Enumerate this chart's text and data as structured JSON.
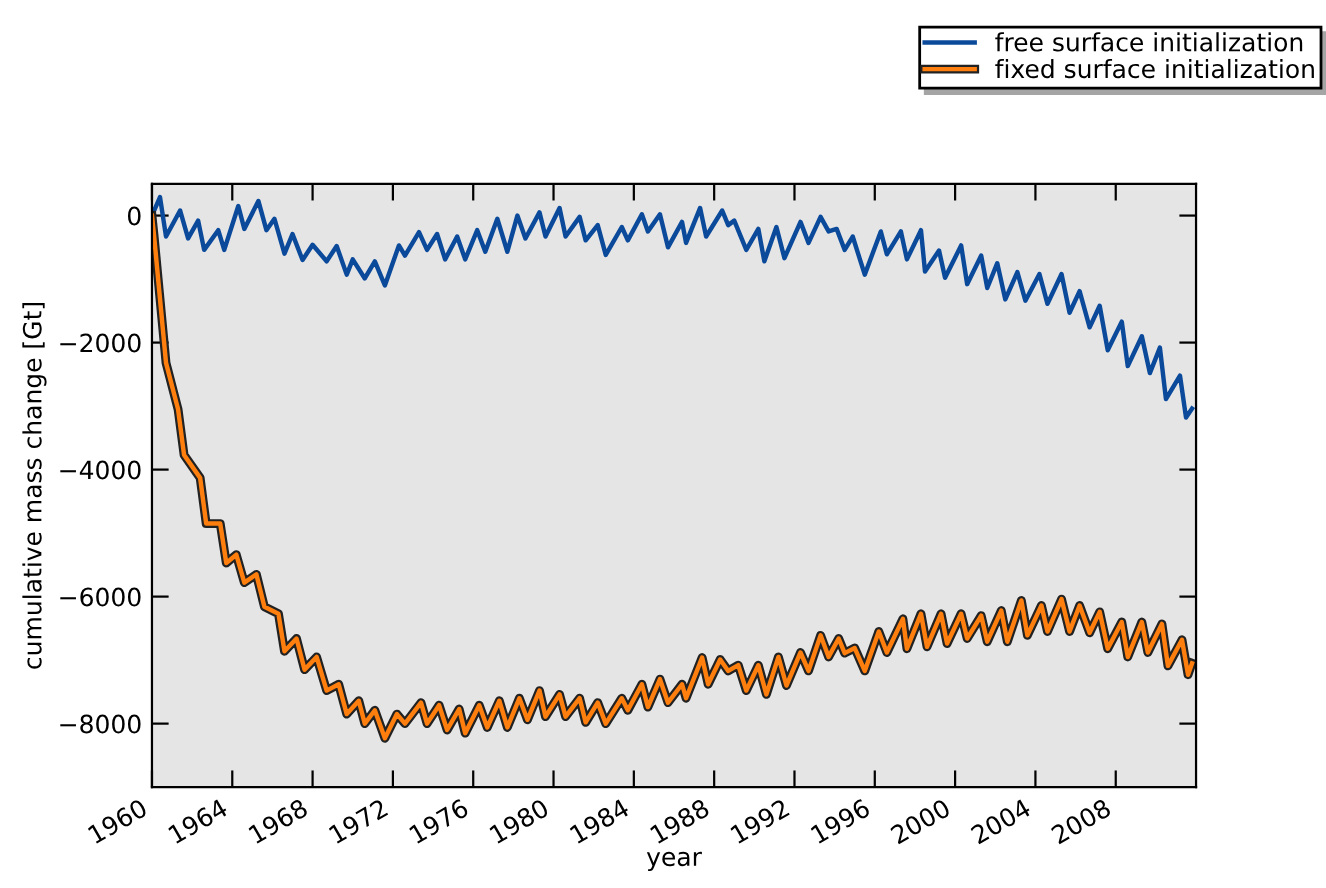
{
  "chart_data": {
    "type": "line",
    "xlabel": "year",
    "ylabel": "cumulative mass change [Gt]",
    "xlim": [
      1960,
      2012
    ],
    "ylim": [
      -9000,
      500
    ],
    "xticks": [
      1960,
      1964,
      1968,
      1972,
      1976,
      1980,
      1984,
      1988,
      1992,
      1996,
      2000,
      2004,
      2008
    ],
    "yticks": [
      -8000,
      -6000,
      -4000,
      -2000,
      0
    ],
    "grid": false,
    "legend": "top right",
    "line_style": "solid",
    "marker": "none",
    "series": [
      {
        "name": "free surface initialization",
        "color": "#0b4a9b",
        "x": [
          1960.0,
          1960.4,
          1960.7,
          1961.4,
          1961.8,
          1962.3,
          1962.6,
          1963.3,
          1963.6,
          1964.3,
          1964.6,
          1965.3,
          1965.7,
          1966.1,
          1966.6,
          1967.0,
          1967.5,
          1968.0,
          1968.7,
          1969.2,
          1969.7,
          1970.0,
          1970.6,
          1971.1,
          1971.6,
          1972.3,
          1972.6,
          1973.3,
          1973.7,
          1974.2,
          1974.6,
          1975.2,
          1975.6,
          1976.2,
          1976.6,
          1977.2,
          1977.7,
          1978.2,
          1978.6,
          1979.3,
          1979.6,
          1980.3,
          1980.6,
          1981.3,
          1981.6,
          1982.2,
          1982.6,
          1983.4,
          1983.7,
          1984.4,
          1984.7,
          1985.3,
          1985.7,
          1986.4,
          1986.6,
          1987.3,
          1987.6,
          1988.4,
          1988.7,
          1989.0,
          1989.6,
          1990.2,
          1990.5,
          1991.1,
          1991.5,
          1992.3,
          1992.7,
          1993.3,
          1993.7,
          1994.1,
          1994.5,
          1994.9,
          1995.5,
          1996.3,
          1996.6,
          1997.3,
          1997.6,
          1998.3,
          1998.5,
          1999.2,
          1999.5,
          2000.3,
          2000.6,
          2001.3,
          2001.6,
          2002.1,
          2002.5,
          2003.1,
          2003.5,
          2004.2,
          2004.6,
          2005.3,
          2005.7,
          2006.2,
          2006.7,
          2007.2,
          2007.6,
          2008.3,
          2008.6,
          2009.3,
          2009.7,
          2010.2,
          2010.5,
          2011.2,
          2011.5,
          2011.8
        ],
        "values": [
          0,
          290,
          -330,
          80,
          -360,
          -80,
          -540,
          -230,
          -540,
          150,
          -210,
          230,
          -230,
          -50,
          -600,
          -290,
          -700,
          -460,
          -720,
          -480,
          -930,
          -690,
          -990,
          -720,
          -1100,
          -470,
          -630,
          -260,
          -540,
          -290,
          -690,
          -330,
          -690,
          -230,
          -570,
          -50,
          -570,
          0,
          -360,
          50,
          -330,
          120,
          -330,
          -20,
          -390,
          -150,
          -620,
          -180,
          -390,
          20,
          -250,
          20,
          -500,
          -100,
          -430,
          120,
          -330,
          80,
          -150,
          -80,
          -540,
          -210,
          -720,
          -180,
          -670,
          -100,
          -430,
          -20,
          -250,
          -210,
          -540,
          -330,
          -930,
          -250,
          -610,
          -250,
          -690,
          -230,
          -880,
          -550,
          -980,
          -470,
          -1080,
          -630,
          -1140,
          -750,
          -1320,
          -890,
          -1340,
          -920,
          -1390,
          -920,
          -1530,
          -1190,
          -1760,
          -1420,
          -2120,
          -1670,
          -2370,
          -1900,
          -2480,
          -2080,
          -2890,
          -2520,
          -3180,
          -3040
        ]
      },
      {
        "name": "fixed surface initialization",
        "color": "#ff7f0e",
        "x": [
          1960.0,
          1960.1,
          1960.7,
          1961.3,
          1961.6,
          1962.4,
          1962.7,
          1963.4,
          1963.7,
          1964.2,
          1964.6,
          1965.2,
          1965.6,
          1966.3,
          1966.6,
          1967.2,
          1967.6,
          1968.2,
          1968.7,
          1969.3,
          1969.7,
          1970.3,
          1970.6,
          1971.1,
          1971.6,
          1972.2,
          1972.6,
          1973.4,
          1973.7,
          1974.3,
          1974.7,
          1975.3,
          1975.6,
          1976.3,
          1976.7,
          1977.3,
          1977.7,
          1978.3,
          1978.7,
          1979.3,
          1979.6,
          1980.3,
          1980.6,
          1981.3,
          1981.6,
          1982.2,
          1982.6,
          1983.4,
          1983.7,
          1984.4,
          1984.7,
          1985.3,
          1985.7,
          1986.4,
          1986.6,
          1987.4,
          1987.7,
          1988.3,
          1988.7,
          1989.2,
          1989.6,
          1990.2,
          1990.6,
          1991.2,
          1991.6,
          1992.3,
          1992.7,
          1993.3,
          1993.7,
          1994.2,
          1994.5,
          1995.0,
          1995.5,
          1996.2,
          1996.6,
          1997.4,
          1997.6,
          1998.3,
          1998.6,
          1999.3,
          1999.6,
          2000.3,
          2000.6,
          2001.3,
          2001.6,
          2002.3,
          2002.6,
          2003.3,
          2003.6,
          2004.3,
          2004.6,
          2005.3,
          2005.7,
          2006.2,
          2006.7,
          2007.2,
          2007.6,
          2008.3,
          2008.6,
          2009.3,
          2009.6,
          2010.3,
          2010.6,
          2011.3,
          2011.6,
          2011.8
        ],
        "values": [
          0,
          -300,
          -2320,
          -3050,
          -3770,
          -4130,
          -4850,
          -4850,
          -5470,
          -5340,
          -5780,
          -5650,
          -6160,
          -6270,
          -6860,
          -6660,
          -7150,
          -6950,
          -7480,
          -7380,
          -7850,
          -7640,
          -8000,
          -7790,
          -8230,
          -7850,
          -8000,
          -7670,
          -8000,
          -7710,
          -8100,
          -7770,
          -8150,
          -7710,
          -8060,
          -7640,
          -8060,
          -7600,
          -7940,
          -7480,
          -7890,
          -7540,
          -7890,
          -7600,
          -7980,
          -7670,
          -8000,
          -7600,
          -7790,
          -7380,
          -7740,
          -7300,
          -7670,
          -7380,
          -7600,
          -6960,
          -7380,
          -6990,
          -7170,
          -7080,
          -7480,
          -7080,
          -7540,
          -6950,
          -7400,
          -6880,
          -7170,
          -6610,
          -6950,
          -6660,
          -6890,
          -6810,
          -7170,
          -6550,
          -6880,
          -6350,
          -6820,
          -6270,
          -6790,
          -6270,
          -6740,
          -6270,
          -6660,
          -6300,
          -6710,
          -6220,
          -6710,
          -6060,
          -6610,
          -6140,
          -6550,
          -6040,
          -6550,
          -6140,
          -6570,
          -6240,
          -6820,
          -6400,
          -6950,
          -6400,
          -6880,
          -6430,
          -7090,
          -6680,
          -7230,
          -7050
        ]
      }
    ]
  }
}
